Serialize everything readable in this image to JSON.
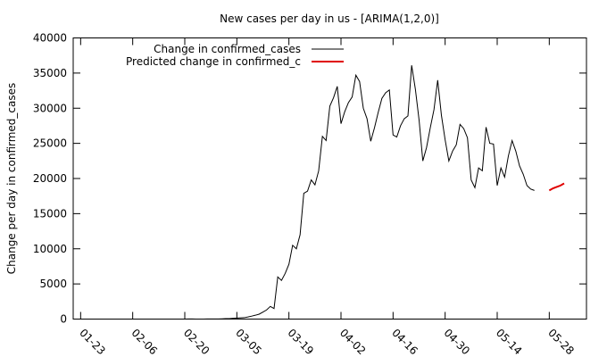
{
  "chart_data": {
    "type": "line",
    "title": "New cases per day in us -  [ARIMA(1,2,0)]",
    "xlabel": "",
    "ylabel": "Change per day in confirmed_cases",
    "ylim": [
      0,
      40000
    ],
    "yticks": [
      0,
      5000,
      10000,
      15000,
      20000,
      25000,
      30000,
      35000,
      40000
    ],
    "xticks": [
      "01-23",
      "02-06",
      "02-20",
      "03-05",
      "03-19",
      "04-02",
      "04-16",
      "04-30",
      "05-14",
      "05-28"
    ],
    "x_start": "01-23",
    "legend_position": "top-left",
    "grid": false,
    "series": [
      {
        "name": "Change in confirmed_cases",
        "color": "#000000",
        "start_day": 0,
        "values": [
          1,
          0,
          1,
          0,
          2,
          0,
          1,
          0,
          2,
          0,
          3,
          0,
          0,
          1,
          0,
          1,
          0,
          0,
          1,
          0,
          1,
          0,
          1,
          0,
          2,
          0,
          0,
          2,
          6,
          16,
          10,
          7,
          2,
          5,
          9,
          15,
          10,
          15,
          40,
          70,
          60,
          110,
          140,
          170,
          200,
          300,
          420,
          550,
          700,
          1000,
          1300,
          1800,
          1500,
          6000,
          5500,
          6500,
          7800,
          10500,
          10000,
          12000,
          17900,
          18200,
          19800,
          19100,
          21100,
          26000,
          25400,
          30300,
          31500,
          33100,
          27800,
          29500,
          30800,
          31600,
          34700,
          33800,
          30000,
          28500,
          25300,
          27200,
          29400,
          31400,
          32200,
          32600,
          26200,
          25900,
          27500,
          28500,
          28900,
          36100,
          32700,
          28300,
          22500,
          24400,
          27200,
          29800,
          34000,
          29000,
          25500,
          22500,
          23900,
          24800,
          27700,
          27100,
          25800,
          19800,
          18700,
          21500,
          21100,
          27300,
          25000,
          24900,
          19000,
          21500,
          20200,
          23200,
          25400,
          23900,
          21800,
          20600,
          19000,
          18500,
          18300
        ]
      },
      {
        "name": "Predicted change in confirmed_c",
        "color": "#e00000",
        "start_day": 126,
        "values": [
          18300,
          18600,
          18800,
          19000,
          19300
        ]
      }
    ]
  }
}
